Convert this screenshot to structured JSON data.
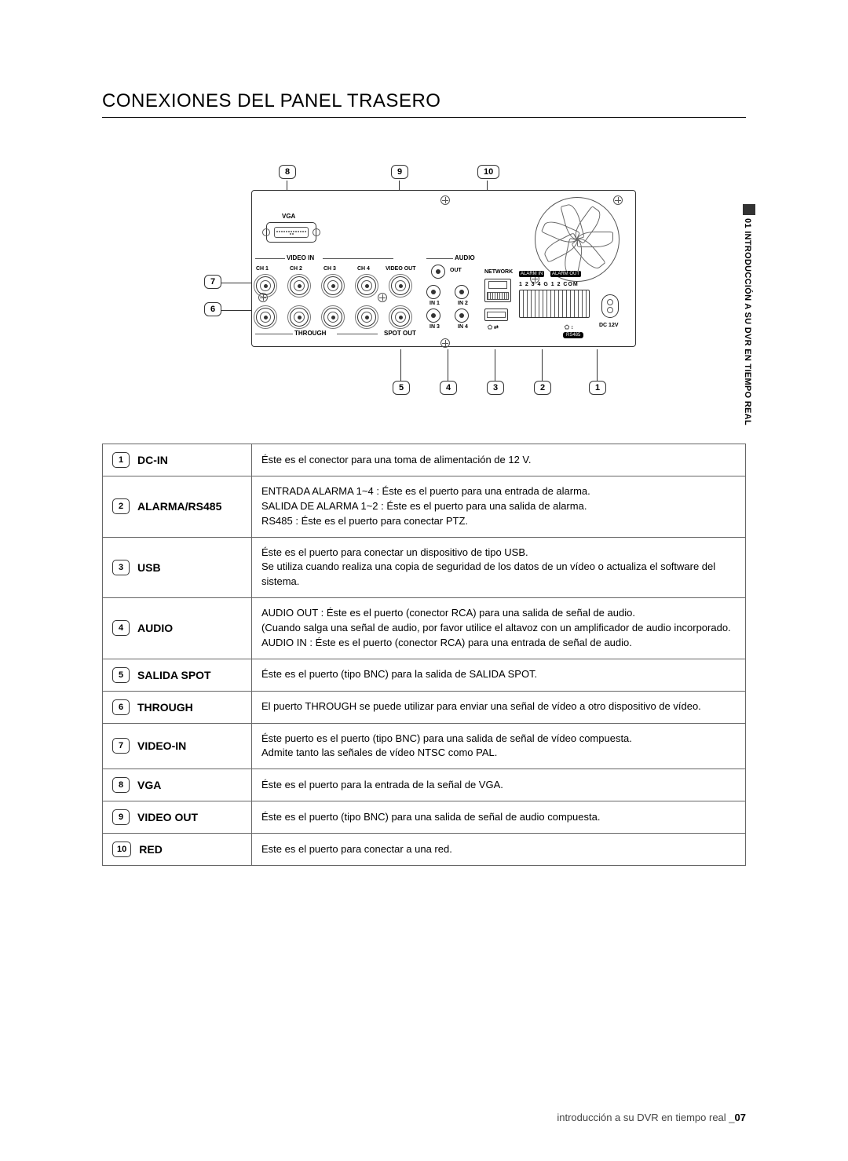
{
  "page": {
    "title": "CONEXIONES DEL PANEL TRASERO",
    "sidebar": "01 INTRODUCCIÓN A SU DVR EN TIEMPO REAL",
    "footer_prefix": "introducción a su DVR en tiempo real _",
    "footer_page": "07"
  },
  "diagram": {
    "callouts": [
      "1",
      "2",
      "3",
      "4",
      "5",
      "6",
      "7",
      "8",
      "9",
      "10"
    ],
    "labels": {
      "vga": "VGA",
      "video_in": "VIDEO IN",
      "through": "THROUGH",
      "ch1": "CH 1",
      "ch2": "CH 2",
      "ch3": "CH 3",
      "ch4": "CH 4",
      "video_out": "VIDEO OUT",
      "spot_out": "SPOT OUT",
      "audio": "AUDIO",
      "out": "OUT",
      "in1": "IN 1",
      "in2": "IN 2",
      "in3": "IN 3",
      "in4": "IN 4",
      "network": "NETWORK",
      "alarm_in": "ALARM IN",
      "alarm_out": "ALARM OUT",
      "term_nums": "1 2 3 4 G 1 2 COM",
      "dc12v": "DC 12V",
      "rs485": "RS485"
    }
  },
  "rows": [
    {
      "n": "1",
      "label": "DC-IN",
      "lines": [
        "Éste es el conector para una toma de alimentación de 12 V."
      ]
    },
    {
      "n": "2",
      "label": "ALARMA/RS485",
      "lines": [
        "ENTRADA ALARMA 1~4 : Éste es el puerto para una entrada de alarma.",
        "SALIDA DE ALARMA 1~2 : Éste es el puerto para una salida de alarma.",
        "RS485 : Éste es el puerto para conectar PTZ."
      ]
    },
    {
      "n": "3",
      "label": "USB",
      "lines": [
        "Éste es el puerto para conectar un dispositivo de tipo USB.",
        "Se utiliza cuando realiza una copia de seguridad de los datos de un vídeo o actualiza el software del sistema."
      ]
    },
    {
      "n": "4",
      "label": "AUDIO",
      "lines": [
        "AUDIO OUT : Éste es el puerto (conector RCA) para una salida de señal de audio.",
        "(Cuando salga una señal de audio, por favor utilice el altavoz con un amplificador de audio incorporado.",
        "AUDIO IN : Éste es el puerto (conector RCA) para una entrada de señal de audio."
      ]
    },
    {
      "n": "5",
      "label": "SALIDA SPOT",
      "lines": [
        "Éste es el puerto (tipo BNC) para la salida de SALIDA SPOT."
      ]
    },
    {
      "n": "6",
      "label": "THROUGH",
      "lines": [
        "El puerto THROUGH se puede utilizar para enviar una señal de vídeo a otro dispositivo de vídeo."
      ]
    },
    {
      "n": "7",
      "label": "VIDEO-IN",
      "lines": [
        "Éste puerto es el puerto (tipo BNC) para una salida de señal de vídeo compuesta.",
        "Admite tanto las señales de vídeo NTSC como PAL."
      ]
    },
    {
      "n": "8",
      "label": "VGA",
      "lines": [
        "Éste es el puerto para la entrada de la señal de VGA."
      ]
    },
    {
      "n": "9",
      "label": "VIDEO OUT",
      "lines": [
        "Éste es el puerto (tipo BNC) para una salida de señal de audio compuesta."
      ]
    },
    {
      "n": "10",
      "label": "RED",
      "lines": [
        "Este es el puerto para conectar a una red."
      ]
    }
  ],
  "style": {
    "page_bg": "#ffffff",
    "text_color": "#000000",
    "border_color": "#666666"
  }
}
